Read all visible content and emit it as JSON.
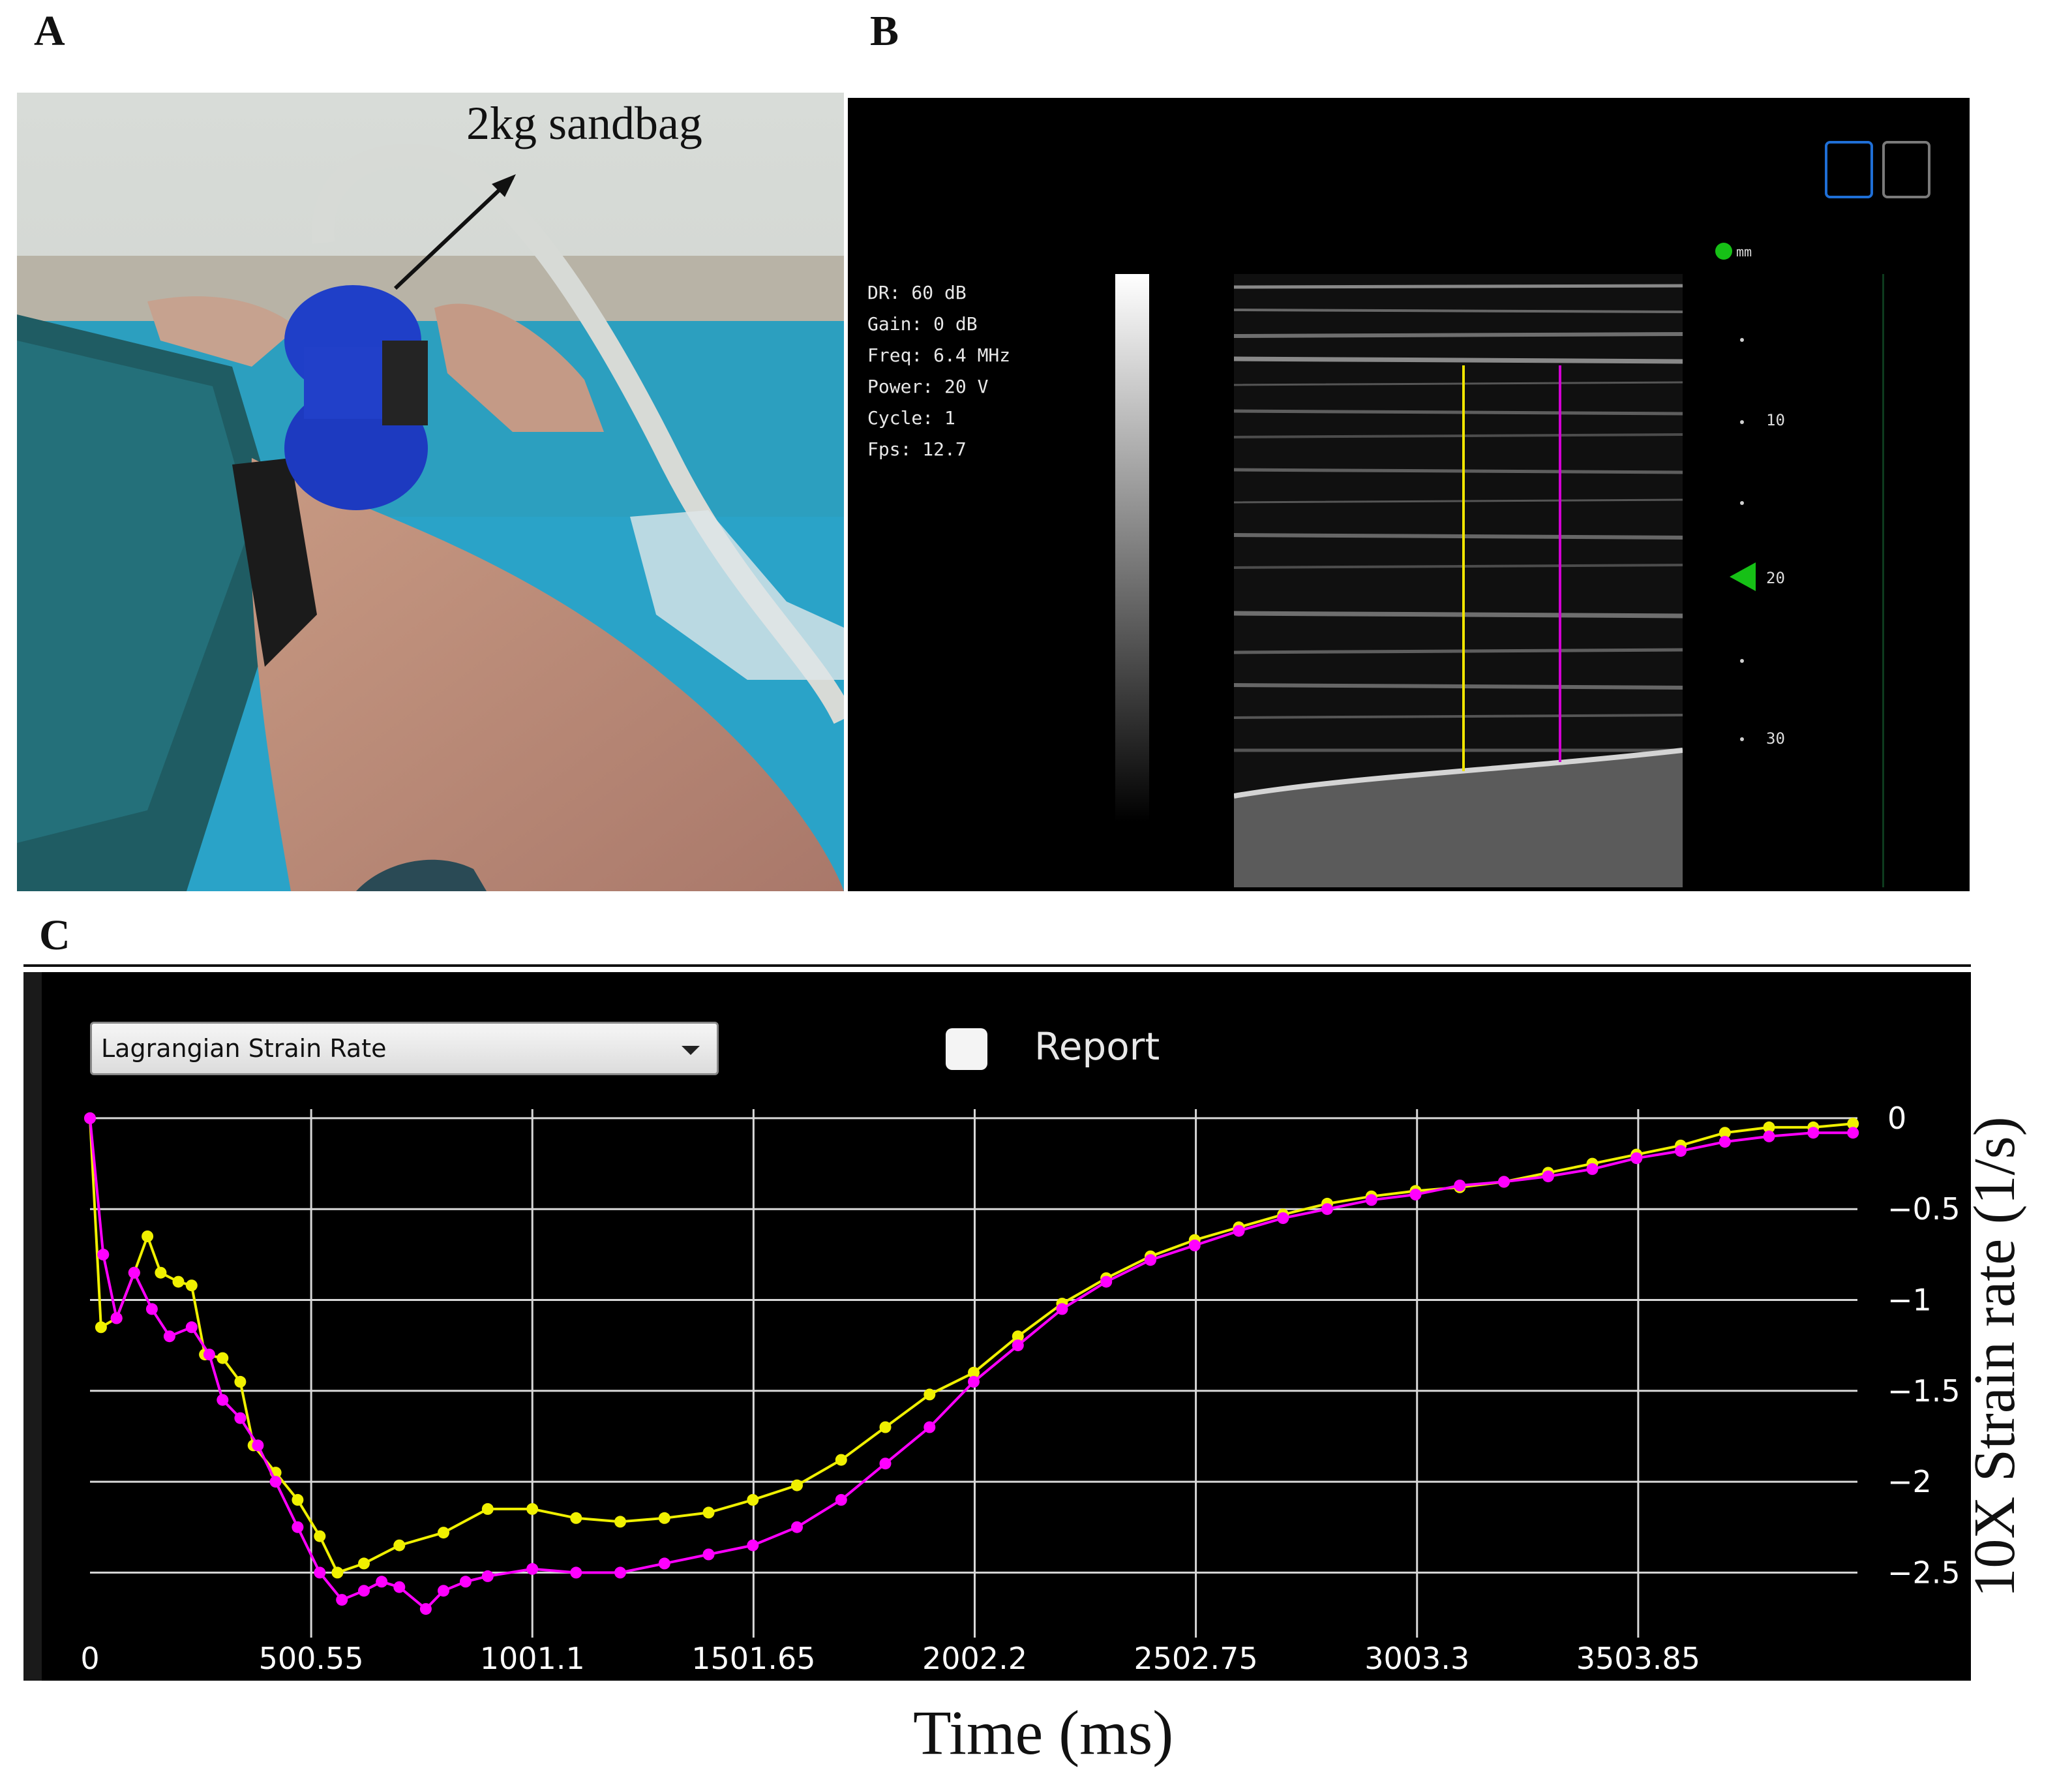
{
  "panels": {
    "a": "A",
    "b": "B",
    "c": "C"
  },
  "photo": {
    "caption": "2kg sandbag"
  },
  "ultrasound": {
    "params": [
      "DR: 60 dB",
      "Gain: 0 dB",
      "Freq: 6.4 MHz",
      "Power: 20 V",
      "Cycle: 1",
      "Fps: 12.7"
    ],
    "depth_unit": "mm",
    "depth_labels": [
      "10",
      "20",
      "30"
    ],
    "marker_colors": {
      "left": "#f0e400",
      "right": "#d200d2",
      "depth_marker": "#16c016"
    }
  },
  "app": {
    "measure_select": "Lagrangian Strain Rate",
    "report_label": "Report",
    "report_checked": false
  },
  "chart_data": {
    "type": "line",
    "xlabel": "Time (ms)",
    "ylabel": "10X Strain rate (1/s)",
    "xlim": [
      0,
      4000
    ],
    "ylim": [
      -2.75,
      0.05
    ],
    "x_ticks": [
      "0",
      "500.55",
      "1001.1",
      "1501.65",
      "2002.2",
      "2502.75",
      "3003.3",
      "3503.85"
    ],
    "y_ticks": [
      "0",
      "-0.5",
      "-1",
      "-1.5",
      "-2",
      "-2.5"
    ],
    "grid": true,
    "background": "#000000",
    "series": [
      {
        "color": "#f0f000",
        "points": [
          [
            0,
            0
          ],
          [
            25,
            -1.15
          ],
          [
            60,
            -1.1
          ],
          [
            100,
            -0.85
          ],
          [
            130,
            -0.65
          ],
          [
            160,
            -0.85
          ],
          [
            200,
            -0.9
          ],
          [
            230,
            -0.92
          ],
          [
            260,
            -1.3
          ],
          [
            300,
            -1.32
          ],
          [
            340,
            -1.45
          ],
          [
            370,
            -1.8
          ],
          [
            420,
            -1.95
          ],
          [
            470,
            -2.1
          ],
          [
            520,
            -2.3
          ],
          [
            560,
            -2.5
          ],
          [
            620,
            -2.45
          ],
          [
            700,
            -2.35
          ],
          [
            800,
            -2.28
          ],
          [
            900,
            -2.15
          ],
          [
            1001,
            -2.15
          ],
          [
            1100,
            -2.2
          ],
          [
            1200,
            -2.22
          ],
          [
            1300,
            -2.2
          ],
          [
            1400,
            -2.17
          ],
          [
            1500,
            -2.1
          ],
          [
            1600,
            -2.02
          ],
          [
            1700,
            -1.88
          ],
          [
            1800,
            -1.7
          ],
          [
            1900,
            -1.52
          ],
          [
            2000,
            -1.4
          ],
          [
            2100,
            -1.2
          ],
          [
            2200,
            -1.02
          ],
          [
            2300,
            -0.88
          ],
          [
            2400,
            -0.76
          ],
          [
            2500,
            -0.67
          ],
          [
            2600,
            -0.6
          ],
          [
            2700,
            -0.53
          ],
          [
            2800,
            -0.47
          ],
          [
            2900,
            -0.43
          ],
          [
            3000,
            -0.4
          ],
          [
            3100,
            -0.38
          ],
          [
            3200,
            -0.35
          ],
          [
            3300,
            -0.3
          ],
          [
            3400,
            -0.25
          ],
          [
            3500,
            -0.2
          ],
          [
            3600,
            -0.15
          ],
          [
            3700,
            -0.08
          ],
          [
            3800,
            -0.05
          ],
          [
            3900,
            -0.05
          ],
          [
            3990,
            -0.03
          ]
        ]
      },
      {
        "color": "#ff00ff",
        "points": [
          [
            0,
            0
          ],
          [
            30,
            -0.75
          ],
          [
            60,
            -1.1
          ],
          [
            100,
            -0.85
          ],
          [
            140,
            -1.05
          ],
          [
            180,
            -1.2
          ],
          [
            230,
            -1.15
          ],
          [
            270,
            -1.3
          ],
          [
            300,
            -1.55
          ],
          [
            340,
            -1.65
          ],
          [
            380,
            -1.8
          ],
          [
            420,
            -2.0
          ],
          [
            470,
            -2.25
          ],
          [
            520,
            -2.5
          ],
          [
            570,
            -2.65
          ],
          [
            620,
            -2.6
          ],
          [
            660,
            -2.55
          ],
          [
            700,
            -2.58
          ],
          [
            760,
            -2.7
          ],
          [
            800,
            -2.6
          ],
          [
            850,
            -2.55
          ],
          [
            900,
            -2.52
          ],
          [
            1001,
            -2.48
          ],
          [
            1100,
            -2.5
          ],
          [
            1200,
            -2.5
          ],
          [
            1300,
            -2.45
          ],
          [
            1400,
            -2.4
          ],
          [
            1500,
            -2.35
          ],
          [
            1600,
            -2.25
          ],
          [
            1700,
            -2.1
          ],
          [
            1800,
            -1.9
          ],
          [
            1900,
            -1.7
          ],
          [
            2000,
            -1.45
          ],
          [
            2100,
            -1.25
          ],
          [
            2200,
            -1.05
          ],
          [
            2300,
            -0.9
          ],
          [
            2400,
            -0.78
          ],
          [
            2500,
            -0.7
          ],
          [
            2600,
            -0.62
          ],
          [
            2700,
            -0.55
          ],
          [
            2800,
            -0.5
          ],
          [
            2900,
            -0.45
          ],
          [
            3000,
            -0.42
          ],
          [
            3100,
            -0.37
          ],
          [
            3200,
            -0.35
          ],
          [
            3300,
            -0.32
          ],
          [
            3400,
            -0.28
          ],
          [
            3500,
            -0.22
          ],
          [
            3600,
            -0.18
          ],
          [
            3700,
            -0.13
          ],
          [
            3800,
            -0.1
          ],
          [
            3900,
            -0.08
          ],
          [
            3990,
            -0.08
          ]
        ]
      }
    ]
  }
}
